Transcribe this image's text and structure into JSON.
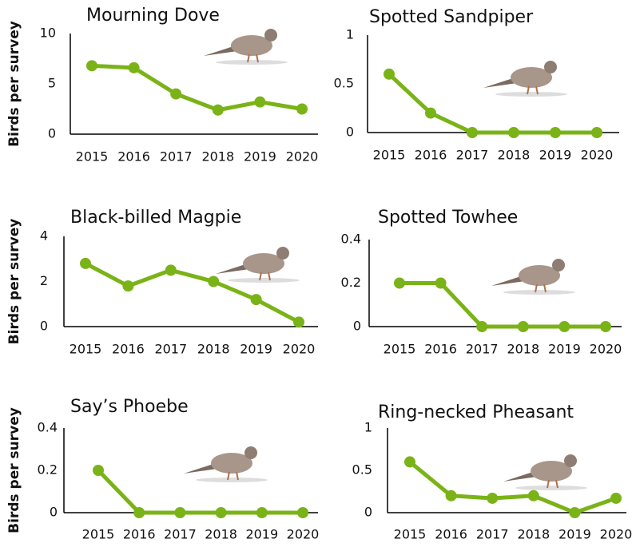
{
  "chart_data": [
    {
      "type": "line",
      "title": "Mourning Dove",
      "ylabel": "Birds per survey",
      "categories": [
        "2015",
        "2016",
        "2017",
        "2018",
        "2019",
        "2020"
      ],
      "values": [
        6.8,
        6.6,
        4.0,
        2.4,
        3.2,
        2.5
      ],
      "color": "#7ab317",
      "ylim": [
        0,
        10
      ],
      "yticks": [
        0,
        5,
        10
      ]
    },
    {
      "type": "line",
      "title": "Spotted Sandpiper",
      "categories": [
        "2015",
        "2016",
        "2017",
        "2018",
        "2019",
        "2020"
      ],
      "values": [
        0.6,
        0.2,
        0,
        0,
        0,
        0
      ],
      "color": "#7ab317",
      "ylim": [
        0,
        1
      ],
      "yticks": [
        0,
        0.5,
        1
      ]
    },
    {
      "type": "line",
      "title": "Black-billed Magpie",
      "ylabel": "Birds per survey",
      "categories": [
        "2015",
        "2016",
        "2017",
        "2018",
        "2019",
        "2020"
      ],
      "values": [
        2.8,
        1.8,
        2.5,
        2.0,
        1.2,
        0.2
      ],
      "color": "#7ab317",
      "ylim": [
        0,
        4
      ],
      "yticks": [
        0,
        2,
        4
      ]
    },
    {
      "type": "line",
      "title": "Spotted Towhee",
      "categories": [
        "2015",
        "2016",
        "2017",
        "2018",
        "2019",
        "2020"
      ],
      "values": [
        0.2,
        0.2,
        0,
        0,
        0,
        0
      ],
      "color": "#7ab317",
      "ylim": [
        0,
        0.4
      ],
      "yticks": [
        0,
        0.2,
        0.4
      ]
    },
    {
      "type": "line",
      "title": "Say’s Phoebe",
      "ylabel": "Birds per survey",
      "categories": [
        "2015",
        "2016",
        "2017",
        "2018",
        "2019",
        "2020"
      ],
      "values": [
        0.2,
        0,
        0,
        0,
        0,
        0
      ],
      "color": "#7ab317",
      "ylim": [
        0,
        0.4
      ],
      "yticks": [
        0,
        0.2,
        0.4
      ]
    },
    {
      "type": "line",
      "title": "Ring-necked Pheasant",
      "categories": [
        "2015",
        "2016",
        "2017",
        "2018",
        "2019",
        "2020"
      ],
      "values": [
        0.6,
        0.2,
        0.17,
        0.2,
        0,
        0.17
      ],
      "color": "#7ab317",
      "ylim": [
        0,
        1
      ],
      "yticks": [
        0,
        0.5,
        1
      ]
    }
  ]
}
